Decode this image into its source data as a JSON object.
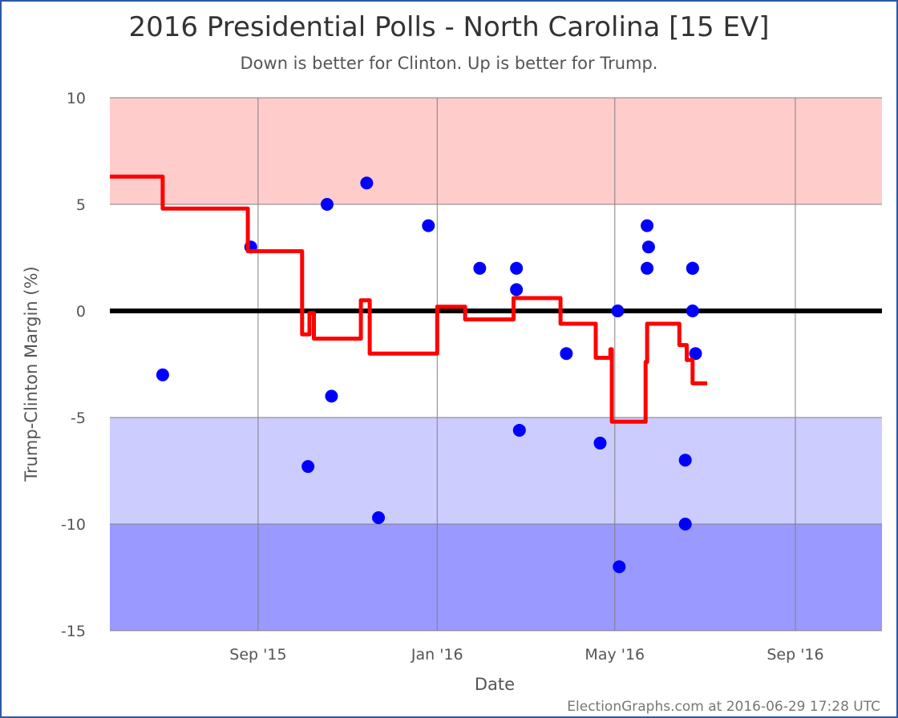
{
  "page": {
    "title": "2016 Presidential Polls - North Carolina [15 EV]",
    "subtitle": "Down is better for Clinton. Up is better for Trump.",
    "footer": "ElectionGraphs.com at 2016-06-29 17:28 UTC"
  },
  "chart_data": {
    "type": "scatter",
    "title": "2016 Presidential Polls - North Carolina [15 EV]",
    "subtitle": "Down is better for Clinton. Up is better for Trump.",
    "xlabel": "Date",
    "ylabel": "Trump-Clinton Margin (%)",
    "xlim": [
      "2015-05-23",
      "2016-10-30"
    ],
    "ylim": [
      -15,
      10
    ],
    "x_ticks": [
      {
        "date": "2015-09-01",
        "label": "Sep '15"
      },
      {
        "date": "2016-01-01",
        "label": "Jan '16"
      },
      {
        "date": "2016-05-01",
        "label": "May '16"
      },
      {
        "date": "2016-09-01",
        "label": "Sep '16"
      }
    ],
    "y_ticks": [
      10,
      5,
      0,
      -5,
      -10,
      -15
    ],
    "grid": true,
    "bands": [
      {
        "from": 5,
        "to": 10,
        "color": "#ffcccc"
      },
      {
        "from": -5,
        "to": 5,
        "color": "#ffffff"
      },
      {
        "from": -10,
        "to": -5,
        "color": "#ccccff"
      },
      {
        "from": -15,
        "to": -10,
        "color": "#9999ff"
      }
    ],
    "colors": {
      "polls": "#0000ff",
      "average": "#ff0000",
      "zero_line": "#000000",
      "grid": "#999999"
    },
    "series": [
      {
        "kind": "points",
        "x": [
          "2015-06-28",
          "2015-08-27",
          "2015-10-05",
          "2015-10-18",
          "2015-10-21",
          "2015-11-14",
          "2015-11-22",
          "2015-12-26",
          "2016-01-30",
          "2016-02-24",
          "2016-02-24",
          "2016-02-26",
          "2016-03-29",
          "2016-04-21",
          "2016-05-03",
          "2016-05-04",
          "2016-05-23",
          "2016-05-23",
          "2016-05-24",
          "2016-06-18",
          "2016-06-18",
          "2016-06-23",
          "2016-06-23",
          "2016-06-23",
          "2016-06-25"
        ],
        "y": [
          -3,
          3,
          -7.3,
          5,
          -4,
          6,
          -9.7,
          4,
          2,
          2,
          1,
          -5.6,
          -2,
          -6.2,
          0,
          -12,
          4,
          2,
          3,
          -7,
          -10,
          2,
          0,
          2,
          -2
        ]
      },
      {
        "kind": "average",
        "x": [
          "2015-05-23",
          "2015-06-28",
          "2015-06-28",
          "2015-08-25",
          "2015-08-25",
          "2015-10-01",
          "2015-10-01",
          "2015-10-06",
          "2015-10-06",
          "2015-10-09",
          "2015-10-09",
          "2015-11-10",
          "2015-11-10",
          "2015-11-16",
          "2015-11-16",
          "2016-01-01",
          "2016-01-01",
          "2016-01-20",
          "2016-01-20",
          "2016-02-22",
          "2016-02-22",
          "2016-03-25",
          "2016-03-25",
          "2016-04-18",
          "2016-04-18",
          "2016-04-28",
          "2016-04-28",
          "2016-04-29",
          "2016-04-29",
          "2016-05-22",
          "2016-05-22",
          "2016-05-23",
          "2016-05-23",
          "2016-06-14",
          "2016-06-14",
          "2016-06-19",
          "2016-06-19",
          "2016-06-23",
          "2016-06-23",
          "2016-07-03"
        ],
        "y": [
          6.3,
          6.3,
          4.8,
          4.8,
          2.8,
          2.8,
          -1.1,
          -1.1,
          -0.1,
          -0.1,
          -1.3,
          -1.3,
          0.5,
          0.5,
          -2,
          -2,
          0.2,
          0.2,
          -0.4,
          -0.4,
          0.6,
          0.6,
          -0.6,
          -0.6,
          -2.2,
          -2.2,
          -1.8,
          -1.8,
          -5.2,
          -5.2,
          -2.4,
          -2.4,
          -0.6,
          -0.6,
          -1.6,
          -1.6,
          -2.3,
          -2.3,
          -3.4,
          -3.4
        ]
      }
    ]
  }
}
